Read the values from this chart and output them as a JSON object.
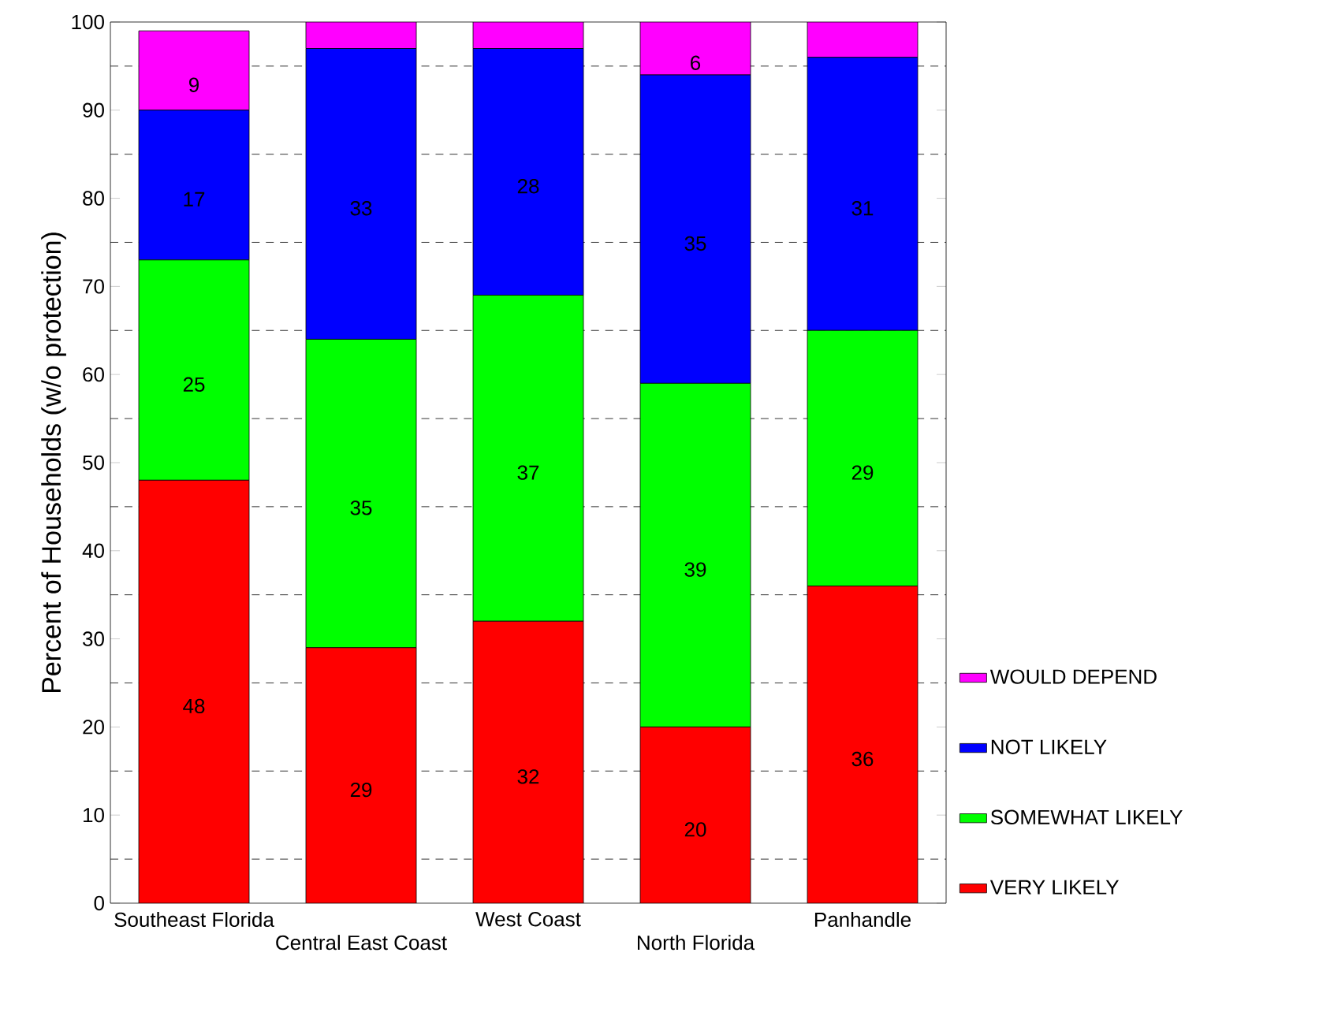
{
  "chart_data": {
    "type": "bar",
    "stacked": true,
    "ylabel": "Percent of Households (w/o protection)",
    "categories": [
      "Southeast Florida",
      "Central East Coast",
      "West Coast",
      "North Florida",
      "Panhandle"
    ],
    "ylim": [
      0,
      100
    ],
    "yticks": [
      0,
      {
        "value": 5,
        "label": null
      },
      10,
      {
        "value": 15,
        "label": null
      },
      20,
      {
        "value": 25,
        "label": null
      },
      30,
      {
        "value": 35,
        "label": null
      },
      40,
      {
        "value": 45,
        "label": null
      },
      50,
      {
        "value": 55,
        "label": null
      },
      60,
      {
        "value": 65,
        "label": null
      },
      70,
      {
        "value": 75,
        "label": null
      },
      80,
      {
        "value": 85,
        "label": null
      },
      90,
      {
        "value": 95,
        "label": null
      },
      100
    ],
    "grid": "y",
    "legend": "right",
    "series": [
      {
        "name": "VERY LIKELY",
        "color": "#ff0000",
        "values": [
          48,
          29,
          32,
          20,
          36
        ],
        "value_labels": [
          "48",
          "29",
          "32",
          "20",
          "36"
        ]
      },
      {
        "name": "SOMEWHAT LIKELY",
        "color": "#00ff00",
        "values": [
          25,
          35,
          37,
          39,
          29
        ],
        "value_labels": [
          "25",
          "35",
          "37",
          "39",
          "29"
        ]
      },
      {
        "name": "NOT LIKELY",
        "color": "#0000ff",
        "values": [
          17,
          33,
          28,
          35,
          31
        ],
        "value_labels": [
          "17",
          "33",
          "28",
          "35",
          "31"
        ]
      },
      {
        "name": "WOULD DEPEND",
        "color": "#ff00ff",
        "values": [
          9,
          3,
          3,
          6,
          4
        ],
        "value_labels": [
          "9",
          null,
          null,
          "6",
          null
        ]
      }
    ]
  }
}
